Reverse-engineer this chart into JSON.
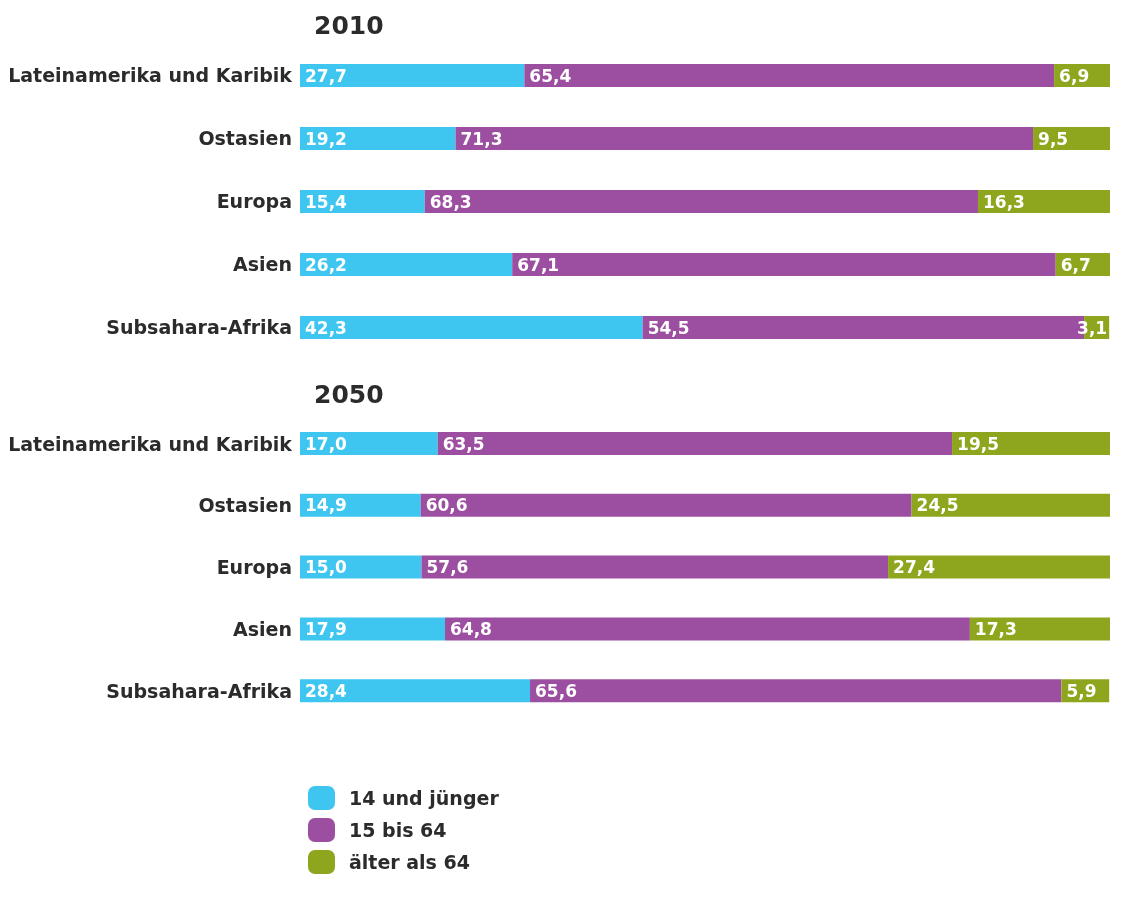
{
  "chart_data": [
    {
      "type": "bar",
      "title": "2010",
      "orientation": "horizontal",
      "stacked": true,
      "categories": [
        "Lateinamerika und Karibik",
        "Ostasien",
        "Europa",
        "Asien",
        "Subsahara-Afrika"
      ],
      "series": [
        {
          "color": "#3ec6f0",
          "values": [
            27.7,
            19.2,
            15.4,
            26.2,
            42.3
          ],
          "value_labels": [
            "27,7",
            "19,2",
            "15,4",
            "26,2",
            "42,3"
          ]
        },
        {
          "color": "#9c4fa0",
          "values": [
            65.4,
            71.3,
            68.3,
            67.1,
            54.5
          ],
          "value_labels": [
            "65,4",
            "71,3",
            "68,3",
            "67,1",
            "54,5"
          ]
        },
        {
          "color": "#8ea61e",
          "values": [
            6.9,
            9.5,
            16.3,
            6.7,
            3.1
          ],
          "value_labels": [
            "6,9",
            "9,5",
            "16,3",
            "6,7",
            "3,1"
          ]
        }
      ],
      "tick_labels": "y",
      "legend": false
    },
    {
      "type": "bar",
      "title": "2050",
      "orientation": "horizontal",
      "stacked": true,
      "categories": [
        "Lateinamerika und Karibik",
        "Ostasien",
        "Europa",
        "Asien",
        "Subsahara-Afrika"
      ],
      "series": [
        {
          "name": "14 und jünger",
          "color": "#3ec6f0",
          "values": [
            17.0,
            14.9,
            15.0,
            17.9,
            28.4
          ],
          "value_labels": [
            "17,0",
            "14,9",
            "15,0",
            "17,9",
            "28,4"
          ]
        },
        {
          "name": "15 bis 64",
          "color": "#9c4fa0",
          "values": [
            63.5,
            60.6,
            57.6,
            64.8,
            65.6
          ],
          "value_labels": [
            "63,5",
            "60,6",
            "57,6",
            "64,8",
            "65,6"
          ]
        },
        {
          "name": "älter als 64",
          "color": "#8ea61e",
          "values": [
            19.5,
            24.5,
            27.4,
            17.3,
            5.9
          ],
          "value_labels": [
            "19,5",
            "24,5",
            "27,4",
            "17,3",
            "5,9"
          ]
        }
      ],
      "tick_labels": "y",
      "legend": "bottom"
    }
  ]
}
